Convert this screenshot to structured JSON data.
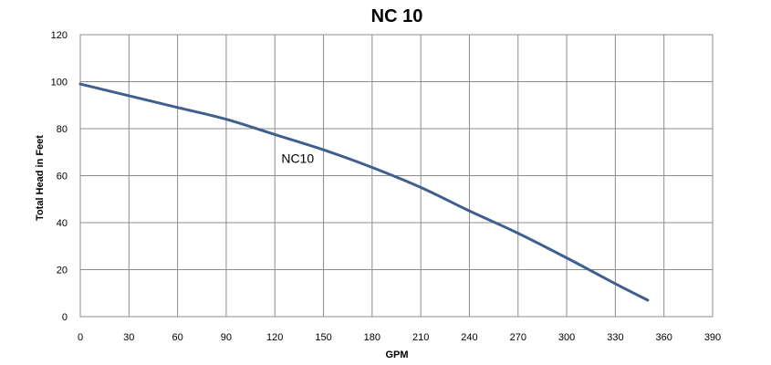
{
  "chart_data": {
    "type": "line",
    "title": "NC 10",
    "xlabel": "GPM",
    "ylabel": "Total Head in Feet",
    "xlim": [
      0,
      390
    ],
    "ylim": [
      0,
      120
    ],
    "x_ticks": [
      0,
      30,
      60,
      90,
      120,
      150,
      180,
      210,
      240,
      270,
      300,
      330,
      360,
      390
    ],
    "y_ticks": [
      0,
      20,
      40,
      60,
      80,
      100,
      120
    ],
    "grid": true,
    "series": [
      {
        "name": "NC10",
        "color": "#3f5f8f",
        "x": [
          0,
          30,
          60,
          90,
          120,
          150,
          180,
          210,
          240,
          270,
          300,
          330,
          350
        ],
        "y": [
          99,
          94,
          89,
          84,
          77.5,
          71,
          63.5,
          55,
          45,
          35.5,
          25,
          14,
          7
        ]
      }
    ]
  }
}
